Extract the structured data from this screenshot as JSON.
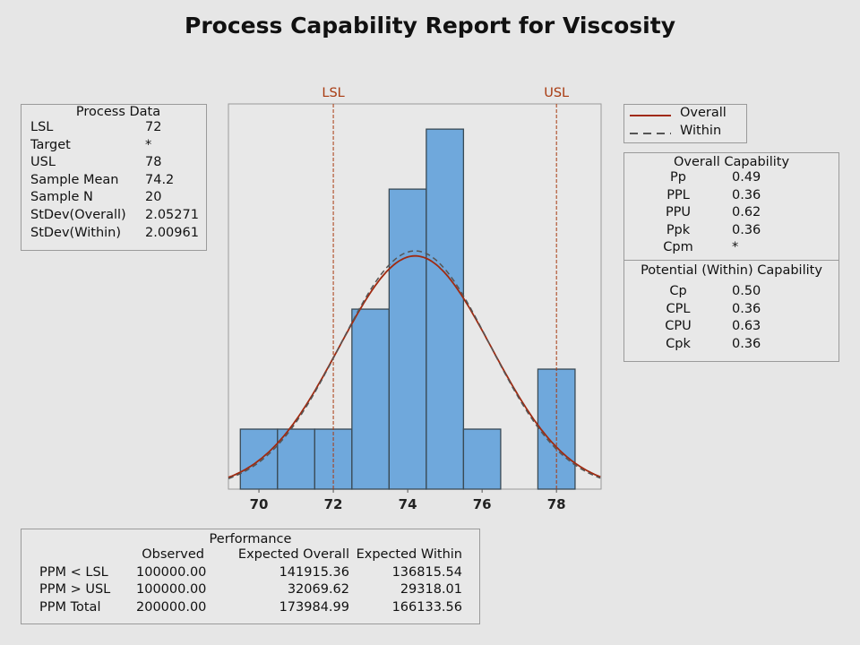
{
  "title": "Process Capability Report for Viscosity",
  "process_data": {
    "header": "Process Data",
    "rows": [
      [
        "LSL",
        "72"
      ],
      [
        "Target",
        "*"
      ],
      [
        "USL",
        "78"
      ],
      [
        "Sample Mean",
        "74.2"
      ],
      [
        "Sample N",
        "20"
      ],
      [
        "StDev(Overall)",
        "2.05271"
      ],
      [
        "StDev(Within)",
        "2.00961"
      ]
    ]
  },
  "legend": {
    "overall": "Overall",
    "within": "Within"
  },
  "overall_capability": {
    "header": "Overall Capability",
    "rows": [
      [
        "Pp",
        "0.49"
      ],
      [
        "PPL",
        "0.36"
      ],
      [
        "PPU",
        "0.62"
      ],
      [
        "Ppk",
        "0.36"
      ],
      [
        "Cpm",
        "*"
      ]
    ]
  },
  "within_capability": {
    "header": "Potential (Within) Capability",
    "rows": [
      [
        "Cp",
        "0.50"
      ],
      [
        "CPL",
        "0.36"
      ],
      [
        "CPU",
        "0.63"
      ],
      [
        "Cpk",
        "0.36"
      ]
    ]
  },
  "performance": {
    "header": "Performance",
    "columns": [
      "",
      "Observed",
      "Expected Overall",
      "Expected Within"
    ],
    "rows": [
      [
        "PPM < LSL",
        "100000.00",
        "141915.36",
        "136815.54"
      ],
      [
        "PPM > USL",
        "100000.00",
        "32069.62",
        "29318.01"
      ],
      [
        "PPM Total",
        "200000.00",
        "173984.99",
        "166133.56"
      ]
    ]
  },
  "chart_data": {
    "type": "bar",
    "title": "Process Capability Report for Viscosity",
    "bin_centers": [
      70,
      71,
      72,
      73,
      74,
      75,
      76,
      77,
      78
    ],
    "counts": [
      1,
      1,
      1,
      3,
      5,
      6,
      1,
      0,
      2
    ],
    "bin_width": 1,
    "xlim": [
      69.18,
      79.2
    ],
    "ylim": [
      0,
      6.42
    ],
    "xticks": [
      "70",
      "72",
      "74",
      "76",
      "78"
    ],
    "spec_lines": [
      {
        "label": "LSL",
        "value": 72
      },
      {
        "label": "USL",
        "value": 78
      }
    ],
    "curves": [
      {
        "name": "Overall",
        "mean": 74.2,
        "sd": 2.05271,
        "style": "solid"
      },
      {
        "name": "Within",
        "mean": 74.2,
        "sd": 2.00961,
        "style": "dashed"
      }
    ],
    "n": 20,
    "colors": {
      "bar": "#6fa8dc",
      "spec": "#a83a10",
      "overall": "#a02a10",
      "within": "#555555"
    }
  }
}
